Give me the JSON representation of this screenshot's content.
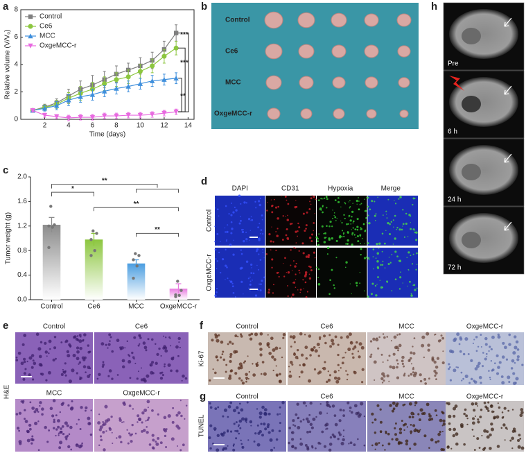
{
  "chart_data": [
    {
      "type": "line",
      "panel_label": "a",
      "xlabel": "Time (days)",
      "ylabel": "Relative volume (V/V₀)",
      "x": [
        1,
        2,
        3,
        4,
        5,
        6,
        7,
        8,
        9,
        10,
        11,
        12,
        13
      ],
      "series": [
        {
          "name": "Control",
          "color": "#7f7f7f",
          "marker": "square",
          "values": [
            0.65,
            0.9,
            1.2,
            1.7,
            2.2,
            2.5,
            2.9,
            3.3,
            3.6,
            3.9,
            4.3,
            5.1,
            6.3
          ],
          "errors": [
            0.1,
            0.2,
            0.3,
            0.5,
            0.6,
            0.7,
            0.6,
            0.6,
            0.5,
            0.6,
            0.6,
            0.6,
            0.6
          ]
        },
        {
          "name": "Ce6",
          "color": "#8cc63f",
          "marker": "circle",
          "values": [
            0.65,
            0.85,
            1.1,
            1.55,
            1.9,
            2.2,
            2.6,
            2.9,
            3.1,
            3.5,
            3.9,
            4.6,
            5.2
          ],
          "errors": [
            0.1,
            0.2,
            0.3,
            0.4,
            0.5,
            0.5,
            0.5,
            0.5,
            0.5,
            0.5,
            0.5,
            0.5,
            0.5
          ]
        },
        {
          "name": "MCC",
          "color": "#3f8fdc",
          "marker": "triangle",
          "values": [
            0.65,
            0.8,
            1.0,
            1.4,
            1.65,
            1.8,
            2.05,
            2.25,
            2.4,
            2.6,
            2.8,
            2.9,
            3.0
          ],
          "errors": [
            0.1,
            0.2,
            0.3,
            0.4,
            0.4,
            0.4,
            0.4,
            0.4,
            0.4,
            0.4,
            0.4,
            0.4,
            0.4
          ]
        },
        {
          "name": "OxgeMCC-r",
          "color": "#e86ae0",
          "marker": "triangle-down",
          "values": [
            0.65,
            0.3,
            0.2,
            0.1,
            0.15,
            0.15,
            0.25,
            0.25,
            0.3,
            0.3,
            0.35,
            0.45,
            0.55
          ],
          "errors": [
            0.1,
            0.15,
            0.15,
            0.2,
            0.2,
            0.2,
            0.2,
            0.2,
            0.2,
            0.2,
            0.2,
            0.2,
            0.2
          ]
        }
      ],
      "xlim": [
        0,
        14.5
      ],
      "xticks": [
        2,
        4,
        6,
        8,
        10,
        12,
        14
      ],
      "ylim": [
        0,
        8
      ],
      "yticks": [
        0,
        2,
        4,
        6,
        8
      ],
      "legend": "upper-left",
      "annotations": [
        "***",
        "***",
        "**"
      ]
    },
    {
      "type": "bar",
      "panel_label": "c",
      "ylabel": "Tumor weight (g)",
      "categories": [
        "Control",
        "Ce6",
        "MCC",
        "OxgeMCC-r"
      ],
      "values": [
        1.22,
        0.98,
        0.59,
        0.18
      ],
      "errors": [
        0.12,
        0.1,
        0.06,
        0.08
      ],
      "points": [
        [
          1.52,
          1.22,
          1.2,
          1.18,
          0.85
        ],
        [
          1.12,
          1.08,
          0.98,
          0.8,
          0.72
        ],
        [
          0.75,
          0.72,
          0.65,
          0.55,
          0.35
        ],
        [
          0.3,
          0.15,
          0.08,
          0.07,
          0.05
        ]
      ],
      "colors": [
        "#8c8c8c",
        "#8cc63f",
        "#4a9de0",
        "#e87ce0"
      ],
      "ylim": [
        0,
        2.0
      ],
      "yticks": [
        {
          "value": 0,
          "label": "0.0"
        },
        {
          "value": 0.4,
          "label": "0.4"
        },
        {
          "value": 0.8,
          "label": "0.8"
        },
        {
          "value": 1.2,
          "label": "1.2"
        },
        {
          "value": 1.6,
          "label": "1.6"
        },
        {
          "value": 2.0,
          "label": "2.0"
        }
      ],
      "annotations": [
        "*",
        "**",
        "**",
        "**"
      ]
    }
  ],
  "panels": {
    "b": {
      "label": "b",
      "rows": [
        "Control",
        "Ce6",
        "MCC",
        "OxgeMCC-r"
      ]
    },
    "d": {
      "label": "d",
      "columns": [
        "DAPI",
        "CD31",
        "Hypoxia",
        "Merge"
      ],
      "rows": [
        "Control",
        "OxgeMCC-r"
      ]
    },
    "e": {
      "label": "e",
      "side": "H&E",
      "columns": [
        "Control",
        "Ce6",
        "MCC",
        "OxgeMCC-r"
      ]
    },
    "f": {
      "label": "f",
      "side": "Ki-67",
      "columns": [
        "Control",
        "Ce6",
        "MCC",
        "OxgeMCC-r"
      ]
    },
    "g": {
      "label": "g",
      "side": "TUNEL",
      "columns": [
        "Control",
        "Ce6",
        "MCC",
        "OxgeMCC-r"
      ]
    },
    "h": {
      "label": "h",
      "frames": [
        "Pre",
        "6 h",
        "24 h",
        "72 h"
      ]
    }
  }
}
